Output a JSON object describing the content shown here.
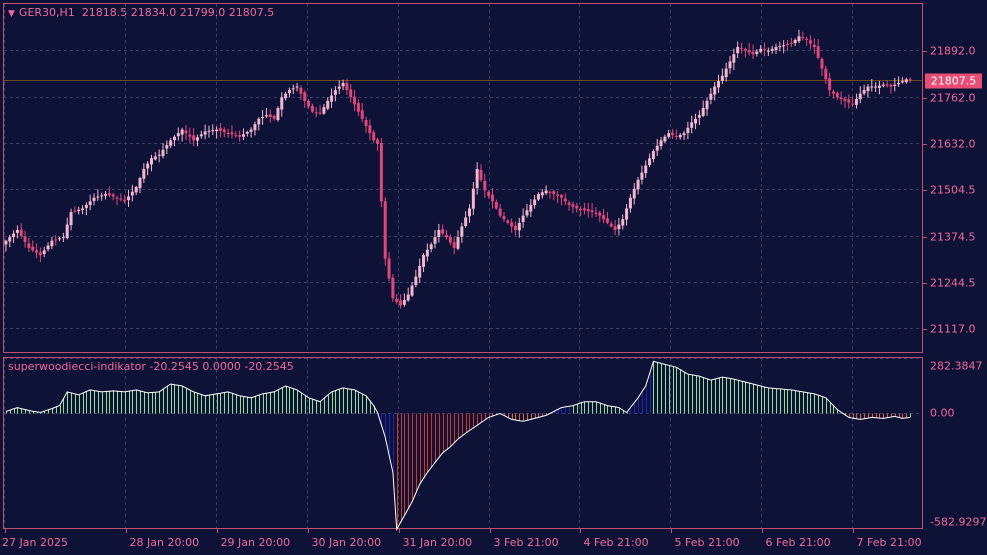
{
  "main_header": {
    "symbol_label": "GER30,H1",
    "ohlc_label": "21818.5 21834.0 21799.0 21807.5"
  },
  "indicator_header": {
    "label": "superwoodiecci-indikator -20.2545 0.0000 -20.2545"
  },
  "current_price_label": "21807.5",
  "colors": {
    "background": "#0f1237",
    "border": "#c0506f",
    "text": "#f06a9a",
    "candle": "#f3b8cf",
    "candle_down": "#e0487a",
    "current_line": "#6b4a1c",
    "hist_green": "#8fe08f",
    "hist_red": "#d23a25",
    "hist_blue": "#1a24b8",
    "hist_orange": "#d8663a",
    "cci_line": "#ffffff"
  },
  "chart_data": [
    {
      "type": "candlestick",
      "title": "GER30,H1",
      "ylim": [
        21050,
        22020
      ],
      "y_tick_labels": [
        "21892.0",
        "21762.0",
        "21632.0",
        "21504.5",
        "21374.5",
        "21244.5",
        "21117.0"
      ],
      "current_price": 21807.5,
      "x_tick_labels": [
        "27 Jan 2025",
        "28 Jan 20:00",
        "29 Jan 20:00",
        "30 Jan 20:00",
        "31 Jan 20:00",
        "3 Feb 21:00",
        "4 Feb 21:00",
        "5 Feb 21:00",
        "6 Feb 21:00",
        "7 Feb 21:00"
      ],
      "close_path": [
        [
          0,
          21360
        ],
        [
          3,
          21390
        ],
        [
          6,
          21340
        ],
        [
          9,
          21320
        ],
        [
          12,
          21360
        ],
        [
          15,
          21370
        ],
        [
          17,
          21440
        ],
        [
          20,
          21450
        ],
        [
          23,
          21480
        ],
        [
          26,
          21490
        ],
        [
          29,
          21480
        ],
        [
          31,
          21470
        ],
        [
          34,
          21510
        ],
        [
          36,
          21560
        ],
        [
          38,
          21590
        ],
        [
          40,
          21600
        ],
        [
          43,
          21640
        ],
        [
          46,
          21670
        ],
        [
          49,
          21640
        ],
        [
          52,
          21665
        ],
        [
          55,
          21670
        ],
        [
          58,
          21660
        ],
        [
          61,
          21650
        ],
        [
          64,
          21670
        ],
        [
          66,
          21700
        ],
        [
          68,
          21710
        ],
        [
          70,
          21700
        ],
        [
          72,
          21760
        ],
        [
          74,
          21780
        ],
        [
          76,
          21790
        ],
        [
          78,
          21750
        ],
        [
          80,
          21720
        ],
        [
          82,
          21715
        ],
        [
          84,
          21750
        ],
        [
          86,
          21780
        ],
        [
          88,
          21800
        ],
        [
          90,
          21760
        ],
        [
          92,
          21720
        ],
        [
          94,
          21680
        ],
        [
          96,
          21640
        ],
        [
          97,
          21630
        ],
        [
          99,
          21310
        ],
        [
          101,
          21200
        ],
        [
          103,
          21180
        ],
        [
          105,
          21210
        ],
        [
          107,
          21260
        ],
        [
          109,
          21320
        ],
        [
          111,
          21350
        ],
        [
          113,
          21390
        ],
        [
          115,
          21370
        ],
        [
          117,
          21340
        ],
        [
          119,
          21400
        ],
        [
          121,
          21450
        ],
        [
          123,
          21560
        ],
        [
          125,
          21500
        ],
        [
          127,
          21470
        ],
        [
          129,
          21430
        ],
        [
          131,
          21410
        ],
        [
          133,
          21390
        ],
        [
          135,
          21430
        ],
        [
          137,
          21460
        ],
        [
          139,
          21490
        ],
        [
          141,
          21500
        ],
        [
          143,
          21490
        ],
        [
          145,
          21480
        ],
        [
          147,
          21460
        ],
        [
          149,
          21450
        ],
        [
          151,
          21445
        ],
        [
          153,
          21440
        ],
        [
          155,
          21430
        ],
        [
          157,
          21410
        ],
        [
          159,
          21390
        ],
        [
          161,
          21420
        ],
        [
          163,
          21480
        ],
        [
          165,
          21530
        ],
        [
          167,
          21570
        ],
        [
          169,
          21610
        ],
        [
          171,
          21640
        ],
        [
          173,
          21660
        ],
        [
          175,
          21650
        ],
        [
          177,
          21660
        ],
        [
          179,
          21690
        ],
        [
          181,
          21710
        ],
        [
          183,
          21750
        ],
        [
          185,
          21790
        ],
        [
          187,
          21820
        ],
        [
          189,
          21860
        ],
        [
          191,
          21900
        ],
        [
          193,
          21890
        ],
        [
          195,
          21880
        ],
        [
          197,
          21895
        ],
        [
          199,
          21890
        ],
        [
          201,
          21900
        ],
        [
          203,
          21905
        ],
        [
          205,
          21910
        ],
        [
          207,
          21930
        ],
        [
          209,
          21920
        ],
        [
          211,
          21900
        ],
        [
          213,
          21840
        ],
        [
          215,
          21780
        ],
        [
          217,
          21760
        ],
        [
          219,
          21750
        ],
        [
          221,
          21740
        ],
        [
          223,
          21770
        ],
        [
          225,
          21790
        ],
        [
          227,
          21790
        ],
        [
          229,
          21795
        ],
        [
          231,
          21790
        ],
        [
          233,
          21800
        ],
        [
          235,
          21810
        ],
        [
          236,
          21807.5
        ]
      ]
    },
    {
      "type": "histogram",
      "title": "superwoodiecci-indikator",
      "ylim": [
        -582.9297,
        282.3847
      ],
      "y_tick_labels": [
        "282.3847",
        "0.00",
        "-582.9297"
      ],
      "series_names": [
        "CCI",
        "Histogram"
      ],
      "segments": [
        {
          "color": "hist_green",
          "from": 0,
          "to": 97
        },
        {
          "color": "hist_blue",
          "from": 97,
          "to": 102
        },
        {
          "color": "hist_red",
          "from": 102,
          "to": 127
        },
        {
          "color": "hist_orange",
          "from": 127,
          "to": 142
        },
        {
          "color": "hist_blue",
          "from": 142,
          "to": 148
        },
        {
          "color": "hist_green",
          "from": 148,
          "to": 163
        },
        {
          "color": "hist_blue",
          "from": 163,
          "to": 169
        },
        {
          "color": "hist_green",
          "from": 169,
          "to": 220
        },
        {
          "color": "hist_orange",
          "from": 220,
          "to": 236
        }
      ],
      "cci_path": [
        [
          0,
          10
        ],
        [
          3,
          30
        ],
        [
          6,
          15
        ],
        [
          9,
          5
        ],
        [
          12,
          25
        ],
        [
          14,
          40
        ],
        [
          16,
          110
        ],
        [
          19,
          95
        ],
        [
          22,
          120
        ],
        [
          25,
          110
        ],
        [
          28,
          115
        ],
        [
          31,
          110
        ],
        [
          34,
          120
        ],
        [
          37,
          105
        ],
        [
          40,
          110
        ],
        [
          43,
          150
        ],
        [
          46,
          140
        ],
        [
          49,
          110
        ],
        [
          52,
          90
        ],
        [
          55,
          100
        ],
        [
          58,
          110
        ],
        [
          61,
          90
        ],
        [
          64,
          80
        ],
        [
          67,
          100
        ],
        [
          70,
          110
        ],
        [
          73,
          140
        ],
        [
          76,
          120
        ],
        [
          79,
          80
        ],
        [
          82,
          60
        ],
        [
          85,
          110
        ],
        [
          88,
          130
        ],
        [
          91,
          120
        ],
        [
          94,
          90
        ],
        [
          96,
          40
        ],
        [
          97,
          5
        ],
        [
          99,
          -120
        ],
        [
          101,
          -300
        ],
        [
          102,
          -590
        ],
        [
          104,
          -520
        ],
        [
          106,
          -450
        ],
        [
          108,
          -360
        ],
        [
          110,
          -300
        ],
        [
          112,
          -250
        ],
        [
          114,
          -200
        ],
        [
          116,
          -170
        ],
        [
          118,
          -130
        ],
        [
          120,
          -100
        ],
        [
          123,
          -60
        ],
        [
          126,
          -20
        ],
        [
          129,
          0
        ],
        [
          132,
          -30
        ],
        [
          135,
          -40
        ],
        [
          138,
          -25
        ],
        [
          141,
          -10
        ],
        [
          143,
          10
        ],
        [
          145,
          30
        ],
        [
          148,
          40
        ],
        [
          151,
          60
        ],
        [
          154,
          60
        ],
        [
          157,
          40
        ],
        [
          160,
          30
        ],
        [
          162,
          5
        ],
        [
          165,
          80
        ],
        [
          167,
          140
        ],
        [
          169,
          265
        ],
        [
          172,
          250
        ],
        [
          175,
          235
        ],
        [
          178,
          200
        ],
        [
          181,
          190
        ],
        [
          184,
          170
        ],
        [
          187,
          185
        ],
        [
          190,
          175
        ],
        [
          193,
          160
        ],
        [
          196,
          145
        ],
        [
          199,
          130
        ],
        [
          202,
          125
        ],
        [
          205,
          120
        ],
        [
          208,
          110
        ],
        [
          211,
          100
        ],
        [
          214,
          80
        ],
        [
          217,
          20
        ],
        [
          220,
          -20
        ],
        [
          223,
          -30
        ],
        [
          226,
          -20
        ],
        [
          229,
          -25
        ],
        [
          232,
          -15
        ],
        [
          234,
          -25
        ],
        [
          236,
          -20
        ]
      ]
    }
  ]
}
